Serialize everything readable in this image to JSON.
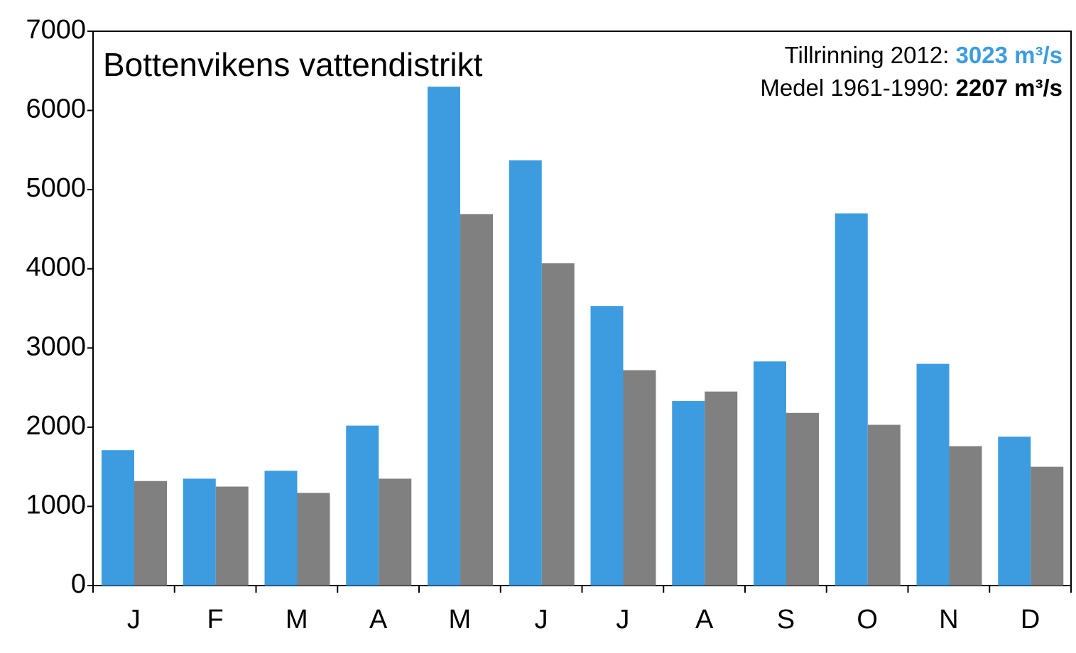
{
  "chart_data": {
    "type": "bar",
    "title": "Bottenvikens vattendistrikt",
    "annotations": [
      {
        "label": "Tillrinning 2012:",
        "value": 3023,
        "unit": "m³/s",
        "color": "#3d9ce0"
      },
      {
        "label": "Medel 1961-1990:",
        "value": 2207,
        "unit": "m³/s",
        "color": "#000000"
      }
    ],
    "categories": [
      "J",
      "F",
      "M",
      "A",
      "M",
      "J",
      "J",
      "A",
      "S",
      "O",
      "N",
      "D"
    ],
    "series": [
      {
        "color": "#3d9ce0",
        "values": [
          1710,
          1350,
          1450,
          2020,
          6300,
          5370,
          3530,
          2330,
          2830,
          4700,
          2800,
          1880
        ]
      },
      {
        "color": "#808080",
        "values": [
          1320,
          1250,
          1170,
          1350,
          4690,
          4070,
          2720,
          2450,
          2180,
          2030,
          1760,
          1500
        ]
      }
    ],
    "ylim": [
      0,
      7000
    ],
    "yticks": [
      0,
      1000,
      2000,
      3000,
      4000,
      5000,
      6000,
      7000
    ],
    "grid": false
  }
}
